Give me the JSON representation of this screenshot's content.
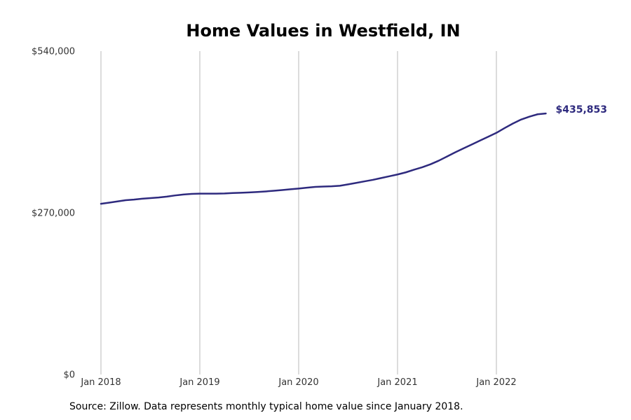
{
  "chart_data": {
    "type": "line",
    "title": "Home Values in Westfield, IN",
    "xlabel": "",
    "ylabel": "",
    "x_ticks": [
      "Jan 2018",
      "Jan 2019",
      "Jan 2020",
      "Jan 2021",
      "Jan 2022"
    ],
    "y_ticks": [
      {
        "value": 0,
        "label": "$0"
      },
      {
        "value": 270000,
        "label": "$270,000"
      },
      {
        "value": 540000,
        "label": "$540,000"
      }
    ],
    "ylim": [
      0,
      540000
    ],
    "xlim": [
      "2018-01",
      "2022-07"
    ],
    "grid": "vertical at each January",
    "line_color": "#2e2a7e",
    "series": [
      {
        "x": [
          "2018-01",
          "2018-02",
          "2018-03",
          "2018-04",
          "2018-05",
          "2018-06",
          "2018-07",
          "2018-08",
          "2018-09",
          "2018-10",
          "2018-11",
          "2018-12",
          "2019-01",
          "2019-02",
          "2019-03",
          "2019-04",
          "2019-05",
          "2019-06",
          "2019-07",
          "2019-08",
          "2019-09",
          "2019-10",
          "2019-11",
          "2019-12",
          "2020-01",
          "2020-02",
          "2020-03",
          "2020-04",
          "2020-05",
          "2020-06",
          "2020-07",
          "2020-08",
          "2020-09",
          "2020-10",
          "2020-11",
          "2020-12",
          "2021-01",
          "2021-02",
          "2021-03",
          "2021-04",
          "2021-05",
          "2021-06",
          "2021-07",
          "2021-08",
          "2021-09",
          "2021-10",
          "2021-11",
          "2021-12",
          "2022-01",
          "2022-02",
          "2022-03",
          "2022-04",
          "2022-05",
          "2022-06",
          "2022-07"
        ],
        "values": [
          285000,
          287000,
          289000,
          291000,
          292000,
          293500,
          294500,
          295500,
          297000,
          299000,
          300500,
          301500,
          302000,
          302000,
          302000,
          302300,
          303000,
          303500,
          304000,
          304700,
          305700,
          306800,
          308000,
          309300,
          310500,
          312000,
          313300,
          313800,
          314300,
          315200,
          317500,
          320000,
          322500,
          325000,
          328000,
          331000,
          334000,
          337500,
          342000,
          346000,
          351000,
          357000,
          364000,
          371000,
          377500,
          384000,
          390500,
          397000,
          403500,
          411500,
          419000,
          425700,
          430500,
          434500,
          435853
        ]
      }
    ],
    "end_label": "$435,853"
  },
  "source_note": "Source: Zillow. Data represents monthly typical home value since January 2018."
}
